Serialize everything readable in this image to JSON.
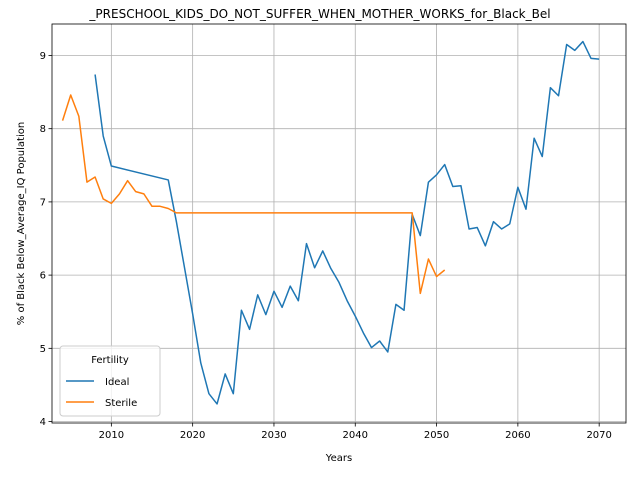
{
  "chart_data": {
    "type": "line",
    "title": "_PRESCHOOL_KIDS_DO_NOT_SUFFER_WHEN_MOTHER_WORKS_for_Black_Bel",
    "xlabel": "Years",
    "ylabel": "% of Black Below_Average_IQ Population",
    "xlim": [
      2002.7,
      2073.3
    ],
    "ylim": [
      3.98,
      9.43
    ],
    "xticks": [
      2010,
      2020,
      2030,
      2040,
      2050,
      2060,
      2070
    ],
    "yticks": [
      4,
      5,
      6,
      7,
      8,
      9
    ],
    "grid": true,
    "legend": {
      "title": "Fertility",
      "placement": "bottom-left"
    },
    "series": [
      {
        "name": "Ideal",
        "color": "#1f77b4",
        "x": [
          2008,
          2009,
          2010,
          2017,
          2018,
          2019,
          2020,
          2021,
          2022,
          2023,
          2024,
          2025,
          2026,
          2027,
          2028,
          2029,
          2030,
          2031,
          2032,
          2033,
          2034,
          2035,
          2036,
          2037,
          2038,
          2039,
          2040,
          2041,
          2042,
          2043,
          2044,
          2045,
          2046,
          2047,
          2048,
          2049,
          2050,
          2051,
          2052,
          2053,
          2054,
          2055,
          2056,
          2057,
          2058,
          2059,
          2060,
          2061,
          2062,
          2063,
          2064,
          2065,
          2066,
          2067,
          2068,
          2069,
          2070
        ],
        "y": [
          8.74,
          7.9,
          7.49,
          7.3,
          6.73,
          6.1,
          5.47,
          4.8,
          4.38,
          4.24,
          4.65,
          4.38,
          5.52,
          5.26,
          5.73,
          5.46,
          5.78,
          5.56,
          5.85,
          5.65,
          6.43,
          6.1,
          6.33,
          6.09,
          5.9,
          5.65,
          5.44,
          5.21,
          5.01,
          5.1,
          4.95,
          5.6,
          5.52,
          6.83,
          6.54,
          7.27,
          7.37,
          7.51,
          7.21,
          7.22,
          6.63,
          6.65,
          6.4,
          6.73,
          6.63,
          6.7,
          7.2,
          6.9,
          7.87,
          7.62,
          8.56,
          8.45,
          9.15,
          9.07,
          9.19,
          8.96,
          8.95
        ]
      },
      {
        "name": "Sterile",
        "color": "#ff7f0e",
        "x": [
          2004,
          2005,
          2006,
          2007,
          2008,
          2009,
          2010,
          2011,
          2012,
          2013,
          2014,
          2015,
          2016,
          2017,
          2018,
          2047,
          2048,
          2049,
          2050,
          2051
        ],
        "y": [
          8.11,
          8.46,
          8.17,
          7.27,
          7.34,
          7.04,
          6.98,
          7.11,
          7.29,
          7.14,
          7.11,
          6.94,
          6.94,
          6.91,
          6.85,
          6.85,
          5.75,
          6.22,
          5.98,
          6.07
        ]
      }
    ]
  }
}
